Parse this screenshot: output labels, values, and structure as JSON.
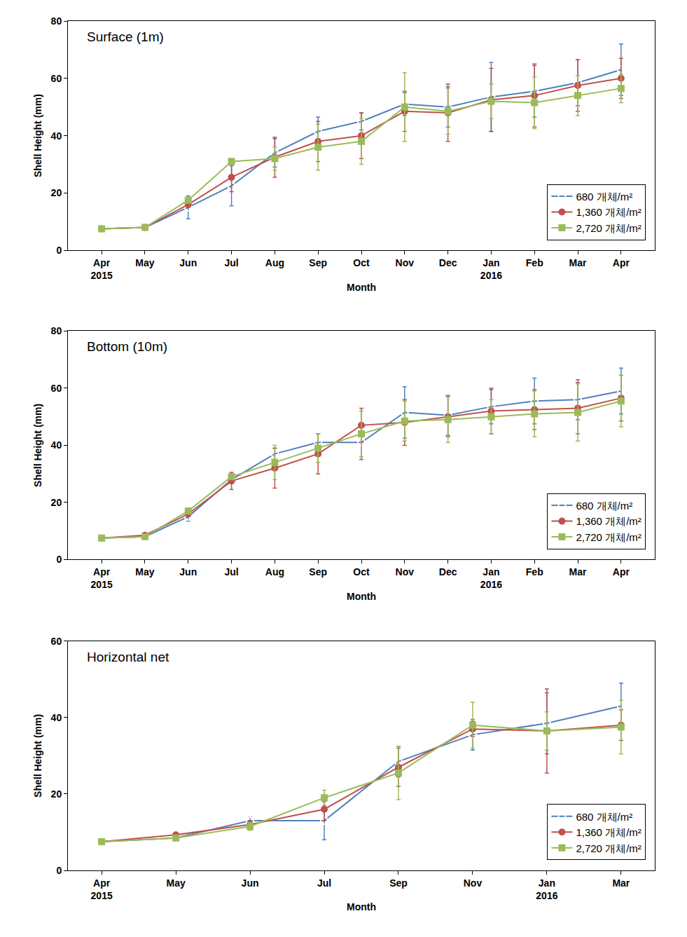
{
  "chart_data": [
    {
      "type": "line",
      "title": "Surface (1m)",
      "x_label": "Month",
      "y_label": "Shell Height (mm)",
      "categories": [
        "Apr\n2015",
        "May",
        "Jun",
        "Jul",
        "Aug",
        "Sep",
        "Oct",
        "Nov",
        "Dec",
        "Jan\n2016",
        "Feb",
        "Mar",
        "Apr"
      ],
      "ylim": [
        0,
        80
      ],
      "yticks": [
        0,
        20,
        40,
        60,
        80
      ],
      "grid": false,
      "legend": "lower right",
      "series": [
        {
          "name": "680 개체/m²",
          "color": "#4f81bd",
          "marker": "circle-open",
          "values": [
            7.5,
            8,
            15,
            22.5,
            34,
            41.5,
            45,
            51,
            50,
            53.5,
            55.5,
            58.5,
            63
          ],
          "error": [
            0.5,
            0.5,
            4,
            7,
            5,
            5,
            3,
            4,
            7,
            12,
            9,
            8,
            9
          ]
        },
        {
          "name": "1,360 개체/m²",
          "color": "#c0504d",
          "marker": "circle",
          "values": [
            7.5,
            8,
            16,
            25.5,
            32.5,
            38,
            40,
            48.5,
            48,
            52.5,
            54,
            57.5,
            60
          ],
          "error": [
            0.5,
            0.5,
            1,
            5,
            7,
            7,
            8,
            7,
            10,
            11,
            11,
            9,
            7
          ]
        },
        {
          "name": "2,720 개체/m²",
          "color": "#9bbb59",
          "marker": "square",
          "values": [
            7.5,
            8,
            17.5,
            31,
            32,
            36,
            38,
            50,
            48.5,
            52,
            51.5,
            54,
            56.5
          ],
          "error": [
            0.5,
            0.5,
            1,
            1,
            4,
            8,
            8,
            12,
            8,
            6,
            9,
            7,
            5
          ]
        }
      ]
    },
    {
      "type": "line",
      "title": "Bottom (10m)",
      "x_label": "Month",
      "y_label": "Shell Height (mm)",
      "categories": [
        "Apr\n2015",
        "May",
        "Jun",
        "Jul",
        "Aug",
        "Sep",
        "Oct",
        "Nov",
        "Dec",
        "Jan\n2016",
        "Feb",
        "Mar",
        "Apr"
      ],
      "ylim": [
        0,
        80
      ],
      "yticks": [
        0,
        20,
        40,
        60,
        80
      ],
      "grid": false,
      "legend": "lower right",
      "series": [
        {
          "name": "680 개체/m²",
          "color": "#4f81bd",
          "marker": "circle-open",
          "values": [
            7.5,
            8,
            15,
            28,
            37,
            41,
            41,
            51.5,
            50.5,
            53.5,
            55.5,
            56,
            59
          ],
          "error": [
            0.5,
            0.5,
            1.5,
            1,
            2,
            3,
            6,
            9,
            7,
            6,
            8,
            7,
            8
          ]
        },
        {
          "name": "1,360 개체/m²",
          "color": "#c0504d",
          "marker": "circle",
          "values": [
            7.5,
            8.5,
            16,
            27.5,
            32,
            37,
            47,
            48,
            50,
            52,
            52.5,
            53,
            56.5
          ],
          "error": [
            0.5,
            0.5,
            1,
            3,
            7,
            7,
            6,
            8,
            7,
            8,
            7,
            9,
            8
          ]
        },
        {
          "name": "2,720 개체/m²",
          "color": "#9bbb59",
          "marker": "square",
          "values": [
            7.5,
            8,
            17,
            29,
            34,
            39,
            44,
            48.5,
            49,
            50,
            51,
            51.5,
            55.5
          ],
          "error": [
            0.5,
            0.5,
            1,
            1,
            6,
            5,
            8,
            7,
            8,
            6,
            8,
            10,
            9
          ]
        }
      ]
    },
    {
      "type": "line",
      "title": "Horizontal net",
      "x_label": "Month",
      "y_label": "Shell Height (mm)",
      "categories": [
        "Apr\n2015",
        "May",
        "Jun",
        "Jul",
        "Sep",
        "Nov",
        "Jan\n2016",
        "Mar"
      ],
      "ylim": [
        0,
        60
      ],
      "yticks": [
        0,
        20,
        40,
        60
      ],
      "grid": false,
      "legend": "lower right",
      "series": [
        {
          "name": "680 개체/m²",
          "color": "#4f81bd",
          "marker": "circle-open",
          "values": [
            7.5,
            8.5,
            13,
            13,
            28.5,
            35.5,
            38.5,
            43
          ],
          "error": [
            0.5,
            0.5,
            1,
            5,
            4,
            4,
            8,
            6
          ]
        },
        {
          "name": "1,360 개체/m²",
          "color": "#c0504d",
          "marker": "circle",
          "values": [
            7.5,
            9.3,
            12,
            16,
            27,
            37,
            36.5,
            38
          ],
          "error": [
            0.5,
            0.5,
            1,
            3,
            5,
            2,
            11,
            4
          ]
        },
        {
          "name": "2,720 개체/m²",
          "color": "#9bbb59",
          "marker": "square",
          "values": [
            7.5,
            8.5,
            11.5,
            19,
            25.5,
            38,
            36.5,
            37.5
          ],
          "error": [
            0.5,
            0.5,
            1,
            2,
            7,
            6,
            5,
            7
          ]
        }
      ]
    }
  ]
}
